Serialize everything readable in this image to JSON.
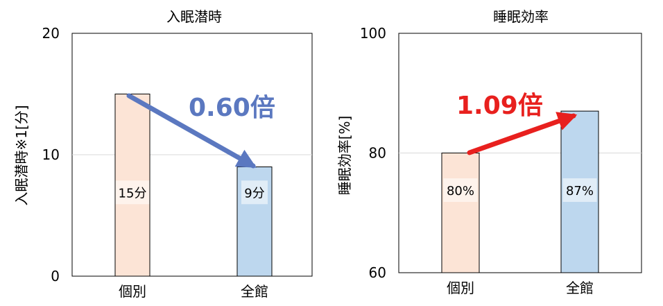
{
  "chart_data": [
    {
      "type": "bar",
      "title": "入眠潜時",
      "ylabel": "入眠潜時※1[分]",
      "xlabel": "",
      "categories": [
        "個別",
        "全館"
      ],
      "values": [
        15,
        9
      ],
      "value_labels": [
        "15分",
        "9分"
      ],
      "bar_colors": [
        "#fce4d6",
        "#bdd7ee"
      ],
      "ylim": [
        0,
        20
      ],
      "yticks": [
        "0",
        "10",
        "20"
      ],
      "grid": true,
      "annotation": {
        "text": "0.60倍",
        "color": "#5b78c0"
      }
    },
    {
      "type": "bar",
      "title": "睡眠効率",
      "ylabel": "睡眠効率[%]",
      "xlabel": "",
      "categories": [
        "個別",
        "全館"
      ],
      "values": [
        80,
        87
      ],
      "value_labels": [
        "80%",
        "87%"
      ],
      "bar_colors": [
        "#fce4d6",
        "#bdd7ee"
      ],
      "ylim": [
        60,
        100
      ],
      "yticks": [
        "60",
        "80",
        "100"
      ],
      "grid": true,
      "annotation": {
        "text": "1.09倍",
        "color": "#e8201e"
      }
    }
  ]
}
